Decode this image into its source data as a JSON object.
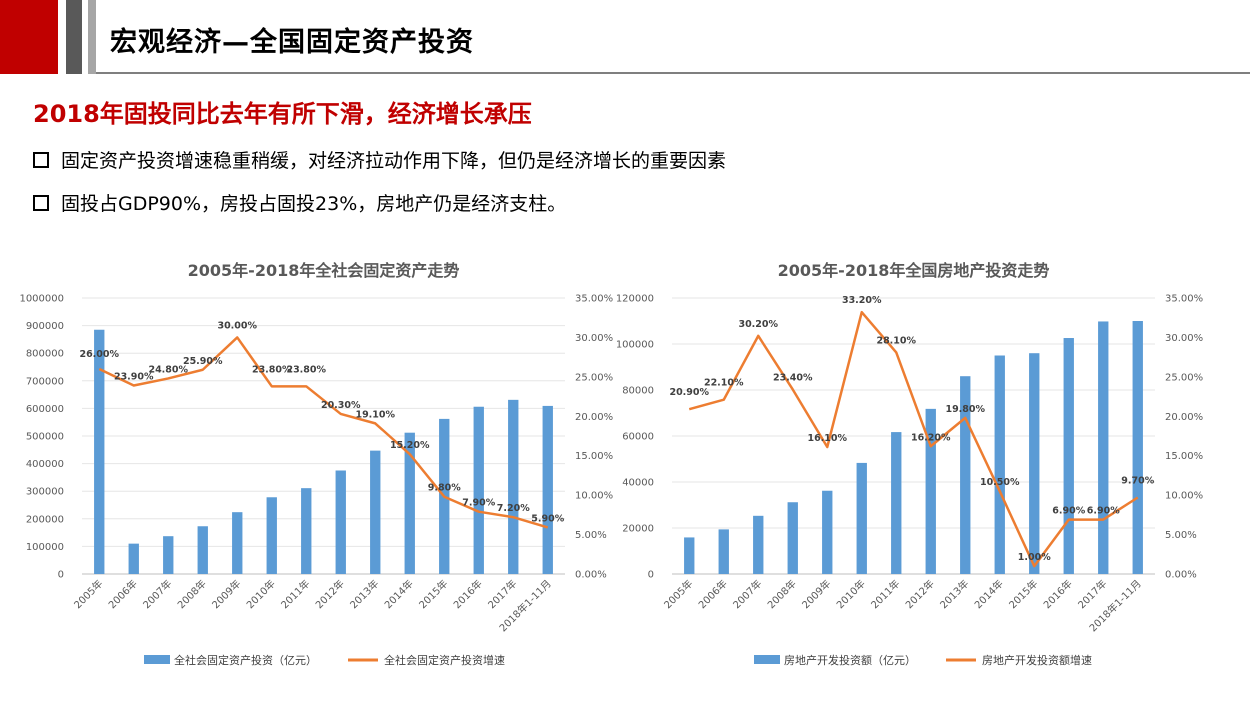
{
  "header": {
    "title": "宏观经济—全国固定资产投资"
  },
  "headline": "2018年固投同比去年有所下滑，经济增长承压",
  "bullets": [
    "固定资产投资增速稳重稍缓，对经济拉动作用下降，但仍是经济增长的重要因素",
    "固投占GDP90%，房投占固投23%，房地产仍是经济支柱。"
  ],
  "colors": {
    "bar": "#5b9bd5",
    "line": "#ed7d31",
    "accent": "#c00000"
  },
  "chart_data": [
    {
      "type": "bar",
      "title": "2005年-2018年全社会固定资产走势",
      "categories": [
        "2005年",
        "2006年",
        "2007年",
        "2008年",
        "2009年",
        "2010年",
        "2011年",
        "2012年",
        "2013年",
        "2014年",
        "2015年",
        "2016年",
        "2017年",
        "2018年1-11月"
      ],
      "series": [
        {
          "name": "全社会固定资产投资（亿元）",
          "kind": "bar",
          "axis": "left",
          "values": [
            885000,
            110000,
            137000,
            173000,
            224000,
            278000,
            311000,
            375000,
            447000,
            512000,
            562000,
            606000,
            631000,
            609000
          ]
        },
        {
          "name": "全社会固定资产投资增速",
          "kind": "line",
          "axis": "right",
          "values": [
            26.0,
            23.9,
            24.8,
            25.9,
            30.0,
            23.8,
            23.8,
            20.3,
            19.1,
            15.2,
            9.8,
            7.9,
            7.2,
            5.9
          ],
          "labels": [
            "26.00%",
            "23.90%",
            "24.80%",
            "25.90%",
            "30.00%",
            "23.80%",
            "23.80%",
            "20.30%",
            "19.10%",
            "15.20%",
            "9.80%",
            "7.90%",
            "7.20%",
            "5.90%"
          ]
        }
      ],
      "ylim": [
        0,
        1000000
      ],
      "y2lim": [
        0,
        35
      ],
      "yticks": [
        "0",
        "100000",
        "200000",
        "300000",
        "400000",
        "500000",
        "600000",
        "700000",
        "800000",
        "900000",
        "1000000"
      ],
      "y2ticks": [
        "0.00%",
        "5.00%",
        "10.00%",
        "15.00%",
        "20.00%",
        "25.00%",
        "30.00%",
        "35.00%"
      ],
      "legend": "bottom"
    },
    {
      "type": "bar",
      "title": "2005年-2018年全国房地产投资走势",
      "categories": [
        "2005年",
        "2006年",
        "2007年",
        "2008年",
        "2009年",
        "2010年",
        "2011年",
        "2012年",
        "2013年",
        "2014年",
        "2015年",
        "2016年",
        "2017年",
        "2018年1-11月"
      ],
      "series": [
        {
          "name": "房地产开发投资额（亿元）",
          "kind": "bar",
          "axis": "left",
          "values": [
            15900,
            19400,
            25300,
            31200,
            36200,
            48300,
            61700,
            71800,
            86000,
            95000,
            96000,
            102600,
            109800,
            110000
          ]
        },
        {
          "name": "房地产开发投资额增速",
          "kind": "line",
          "axis": "right",
          "values": [
            20.9,
            22.1,
            30.2,
            23.4,
            16.1,
            33.2,
            28.1,
            16.2,
            19.8,
            10.5,
            1.0,
            6.9,
            6.9,
            9.7
          ],
          "labels": [
            "20.90%",
            "22.10%",
            "30.20%",
            "23.40%",
            "16.10%",
            "33.20%",
            "28.10%",
            "16.20%",
            "19.80%",
            "10.50%",
            "1.00%",
            "6.90%",
            "6.90%",
            "9.70%"
          ]
        }
      ],
      "ylim": [
        0,
        120000
      ],
      "y2lim": [
        0,
        35
      ],
      "yticks": [
        "0",
        "20000",
        "40000",
        "60000",
        "80000",
        "100000",
        "120000"
      ],
      "y2ticks": [
        "0.00%",
        "5.00%",
        "10.00%",
        "15.00%",
        "20.00%",
        "25.00%",
        "30.00%",
        "35.00%"
      ],
      "legend": "bottom"
    }
  ]
}
